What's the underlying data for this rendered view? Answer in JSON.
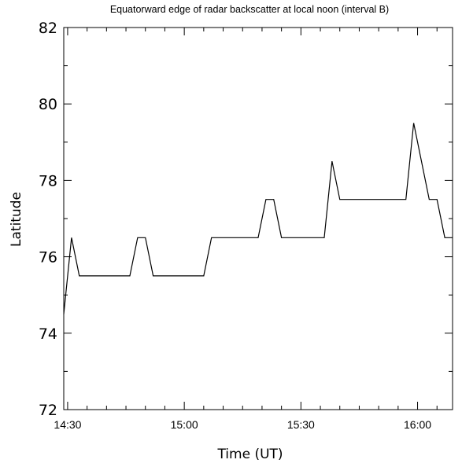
{
  "chart_data": {
    "type": "line",
    "title": "Equatorward edge of radar backscatter at local noon (interval B)",
    "xlabel": "Time  (UT)",
    "ylabel": "Latitude",
    "xlim": [
      "14:29",
      "16:09"
    ],
    "ylim": [
      72,
      82
    ],
    "x_ticks": [
      "14:30",
      "15:00",
      "15:30",
      "16:00"
    ],
    "y_ticks": [
      72,
      74,
      76,
      78,
      80,
      82
    ],
    "grid": false,
    "series": [
      {
        "x": [
          "14:29",
          "14:31",
          "14:33",
          "14:36",
          "14:46",
          "14:48",
          "14:50",
          "14:52",
          "15:05",
          "15:07",
          "15:19",
          "15:21",
          "15:23",
          "15:25",
          "15:36",
          "15:38",
          "15:40",
          "15:55",
          "15:57",
          "15:59",
          "16:03",
          "16:05",
          "16:07",
          "16:09"
        ],
        "values": [
          74.5,
          76.5,
          75.5,
          75.5,
          75.5,
          76.5,
          76.5,
          75.5,
          75.5,
          76.5,
          76.5,
          77.5,
          77.5,
          76.5,
          76.5,
          78.5,
          77.5,
          77.5,
          77.5,
          79.5,
          77.5,
          77.5,
          76.5,
          76.5
        ]
      }
    ]
  }
}
